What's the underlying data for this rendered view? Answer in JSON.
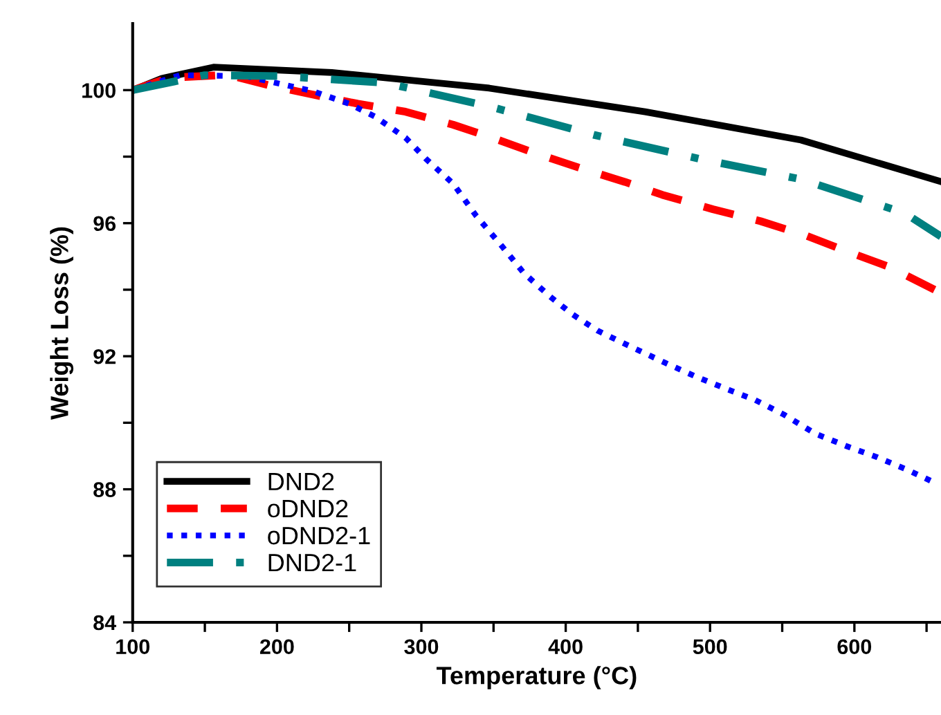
{
  "chart_data": {
    "type": "line",
    "xlabel": "Temperature (°C)",
    "ylabel": "Weight Loss (%)",
    "xlim": [
      100,
      660
    ],
    "ylim": [
      84,
      102
    ],
    "xticks": [
      100,
      {
        "value": 150,
        "label": null
      },
      200,
      {
        "value": 250,
        "label": null
      },
      300,
      {
        "value": 350,
        "label": null
      },
      400,
      {
        "value": 450,
        "label": null
      },
      500,
      {
        "value": 550,
        "label": null
      },
      600,
      {
        "value": 650,
        "label": null
      }
    ],
    "yticks": [
      84,
      {
        "value": 86,
        "label": null
      },
      88,
      {
        "value": 90,
        "label": null
      },
      92,
      {
        "value": 94,
        "label": null
      },
      96,
      {
        "value": 98,
        "label": null
      },
      100
    ],
    "grid": false,
    "legend": "bottom left",
    "marker": "none",
    "series": [
      {
        "name": "DND2",
        "color": "#000000",
        "line_style": "solid",
        "x": [
          100,
          120,
          156,
          238,
          347,
          455,
          563,
          660
        ],
        "values": [
          100.0,
          100.35,
          100.69,
          100.53,
          100.06,
          99.35,
          98.5,
          97.25
        ]
      },
      {
        "name": "oDND2",
        "color": "#ff0000",
        "line_style": "dashed",
        "x": [
          100,
          125,
          166,
          195,
          221,
          256,
          289,
          322,
          347,
          379,
          412,
          441,
          467,
          502,
          535,
          567,
          592,
          625,
          660
        ],
        "values": [
          100.0,
          100.37,
          100.46,
          100.14,
          99.9,
          99.59,
          99.35,
          98.96,
          98.6,
          98.1,
          97.63,
          97.24,
          96.85,
          96.42,
          96.06,
          95.62,
          95.2,
          94.67,
          93.9
        ]
      },
      {
        "name": "oDND2-1",
        "color": "#0000ff",
        "line_style": "dotted",
        "x": [
          100,
          133,
          178,
          224,
          250,
          268,
          289,
          303,
          322,
          338,
          356,
          371,
          389,
          405,
          422,
          443,
          469,
          490,
          510,
          531,
          551,
          573,
          595,
          616,
          637,
          657
        ],
        "values": [
          100.0,
          100.45,
          100.42,
          99.98,
          99.59,
          99.2,
          98.57,
          97.94,
          97.19,
          96.22,
          95.3,
          94.5,
          93.8,
          93.25,
          92.77,
          92.33,
          91.8,
          91.39,
          91.04,
          90.69,
          90.25,
          89.67,
          89.29,
          88.96,
          88.58,
          88.17
        ]
      },
      {
        "name": "DND2-1",
        "color": "#008080",
        "line_style": "dashdot",
        "x": [
          100,
          150,
          203,
          275,
          347,
          420,
          492,
          563,
          635,
          660
        ],
        "values": [
          100.0,
          100.45,
          100.42,
          100.22,
          99.51,
          98.65,
          97.94,
          97.32,
          96.3,
          95.6
        ]
      }
    ]
  }
}
